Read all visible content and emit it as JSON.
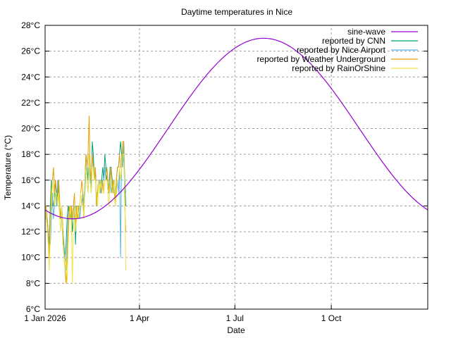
{
  "chart_data": {
    "type": "line",
    "title": "Daytime temperatures in Nice",
    "xlabel": "Date",
    "ylabel": "Temperature (°C)",
    "xlim_days": [
      0,
      365
    ],
    "ylim": [
      6,
      28
    ],
    "x_ticks": [
      {
        "day": 0,
        "label": "1 Jan 2026"
      },
      {
        "day": 90,
        "label": "1 Apr"
      },
      {
        "day": 181,
        "label": "1 Jul"
      },
      {
        "day": 273,
        "label": "1 Oct"
      }
    ],
    "y_ticks": [
      {
        "value": 6,
        "label": "6°C"
      },
      {
        "value": 8,
        "label": "8°C"
      },
      {
        "value": 10,
        "label": "10°C"
      },
      {
        "value": 12,
        "label": "12°C"
      },
      {
        "value": 14,
        "label": "14°C"
      },
      {
        "value": 16,
        "label": "16°C"
      },
      {
        "value": 18,
        "label": "18°C"
      },
      {
        "value": 20,
        "label": "20°C"
      },
      {
        "value": 22,
        "label": "22°C"
      },
      {
        "value": 24,
        "label": "24°C"
      },
      {
        "value": 26,
        "label": "26°C"
      },
      {
        "value": 28,
        "label": "28°C"
      }
    ],
    "grid": true,
    "legend_position": "top-right",
    "series": [
      {
        "name": "sine-wave",
        "color": "#9400d3",
        "kind": "function",
        "formula": "20 - 7*cos(2*pi*(day - 16)/365)",
        "mean": 20,
        "amplitude": 7,
        "min_day": 26,
        "max_day": 208
      },
      {
        "name": "reported by CNN",
        "color": "#009e73",
        "start_day": 0,
        "values": [
          14,
          13,
          13,
          12,
          11,
          14,
          16,
          14,
          14,
          15,
          16,
          14,
          15,
          16,
          14,
          13,
          14,
          12,
          11,
          10,
          11,
          13,
          14,
          13,
          14,
          14,
          12,
          13,
          14,
          11,
          14,
          14,
          14,
          13,
          14,
          14,
          15,
          14,
          16,
          18,
          17,
          16,
          18,
          17,
          15,
          19,
          18,
          16,
          17,
          14,
          15,
          16,
          16,
          15,
          16,
          17,
          16,
          18,
          17,
          16,
          16,
          15,
          17,
          17,
          16,
          15,
          16,
          14,
          16,
          17,
          17,
          18,
          19,
          18,
          17,
          19,
          16,
          14
        ]
      },
      {
        "name": "reported by Nice Airport",
        "color": "#56b4e9",
        "start_day": 0,
        "values": [
          13,
          13,
          13,
          12,
          12,
          11,
          13,
          15,
          13,
          14,
          14,
          14,
          16,
          15,
          13,
          13,
          13,
          11,
          11,
          10,
          9,
          11,
          13,
          14,
          13,
          14,
          14,
          14,
          13,
          14,
          14,
          13,
          14,
          13,
          14,
          14,
          15,
          14,
          15,
          17,
          16,
          15,
          17,
          16,
          15,
          18,
          17,
          16,
          16,
          15,
          15,
          16,
          16,
          15,
          15,
          16,
          16,
          17,
          16,
          16,
          15,
          15,
          16,
          15,
          16,
          15,
          16,
          14,
          15,
          16,
          15,
          17,
          10,
          18,
          17,
          18,
          16,
          15
        ]
      },
      {
        "name": "reported by Weather Underground",
        "color": "#e69f00",
        "start_day": 0,
        "values": [
          14,
          14,
          13,
          12,
          10,
          13,
          15,
          16,
          17,
          15,
          16,
          15,
          14,
          16,
          14,
          13,
          14,
          12,
          10,
          9,
          8,
          10,
          12,
          14,
          13,
          14,
          13,
          14,
          15,
          12,
          14,
          13,
          14,
          14,
          15,
          16,
          15,
          13,
          16,
          18,
          17,
          18,
          21,
          17,
          16,
          18,
          17,
          16,
          17,
          14,
          15,
          16,
          15,
          16,
          15,
          16,
          15,
          16,
          16,
          17,
          16,
          15,
          16,
          17,
          15,
          16,
          15,
          14,
          16,
          17,
          17,
          18,
          17,
          17,
          19,
          19,
          14,
          12
        ]
      },
      {
        "name": "reported by RainOrShine",
        "color": "#f0e442",
        "start_day": 0,
        "values": [
          14,
          13,
          12,
          11,
          9,
          12,
          14,
          16,
          15,
          14,
          15,
          15,
          14,
          15,
          13,
          12,
          14,
          11,
          10,
          9,
          10,
          8,
          11,
          13,
          14,
          13,
          8,
          13,
          14,
          12,
          13,
          14,
          13,
          14,
          15,
          14,
          14,
          13,
          16,
          17,
          16,
          15,
          18,
          16,
          15,
          17,
          17,
          16,
          16,
          15,
          14,
          16,
          15,
          16,
          15,
          15,
          15,
          16,
          16,
          16,
          15,
          14,
          16,
          16,
          15,
          15,
          16,
          14,
          15,
          16,
          16,
          17,
          16,
          17,
          18,
          18,
          15,
          9
        ]
      }
    ]
  }
}
